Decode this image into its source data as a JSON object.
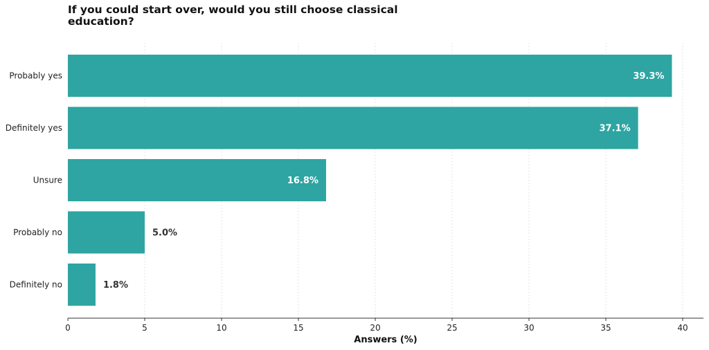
{
  "chart_data": {
    "type": "bar",
    "orientation": "horizontal",
    "title": "If you could start over, would you still choose classical education?",
    "xlabel": "Answers (%)",
    "ylabel": "",
    "xlim": [
      0,
      41.3
    ],
    "xticks": [
      0,
      5,
      10,
      15,
      20,
      25,
      30,
      35,
      40
    ],
    "categories": [
      "Probably yes",
      "Definitely yes",
      "Unsure",
      "Probably no",
      "Definitely no"
    ],
    "values": [
      39.3,
      37.1,
      16.8,
      5.0,
      1.8
    ],
    "value_labels": [
      "39.3%",
      "37.1%",
      "16.8%",
      "5.0%",
      "1.8%"
    ],
    "bar_color": "#2ea5a2",
    "grid": "vertical dotted",
    "legend": "none"
  }
}
